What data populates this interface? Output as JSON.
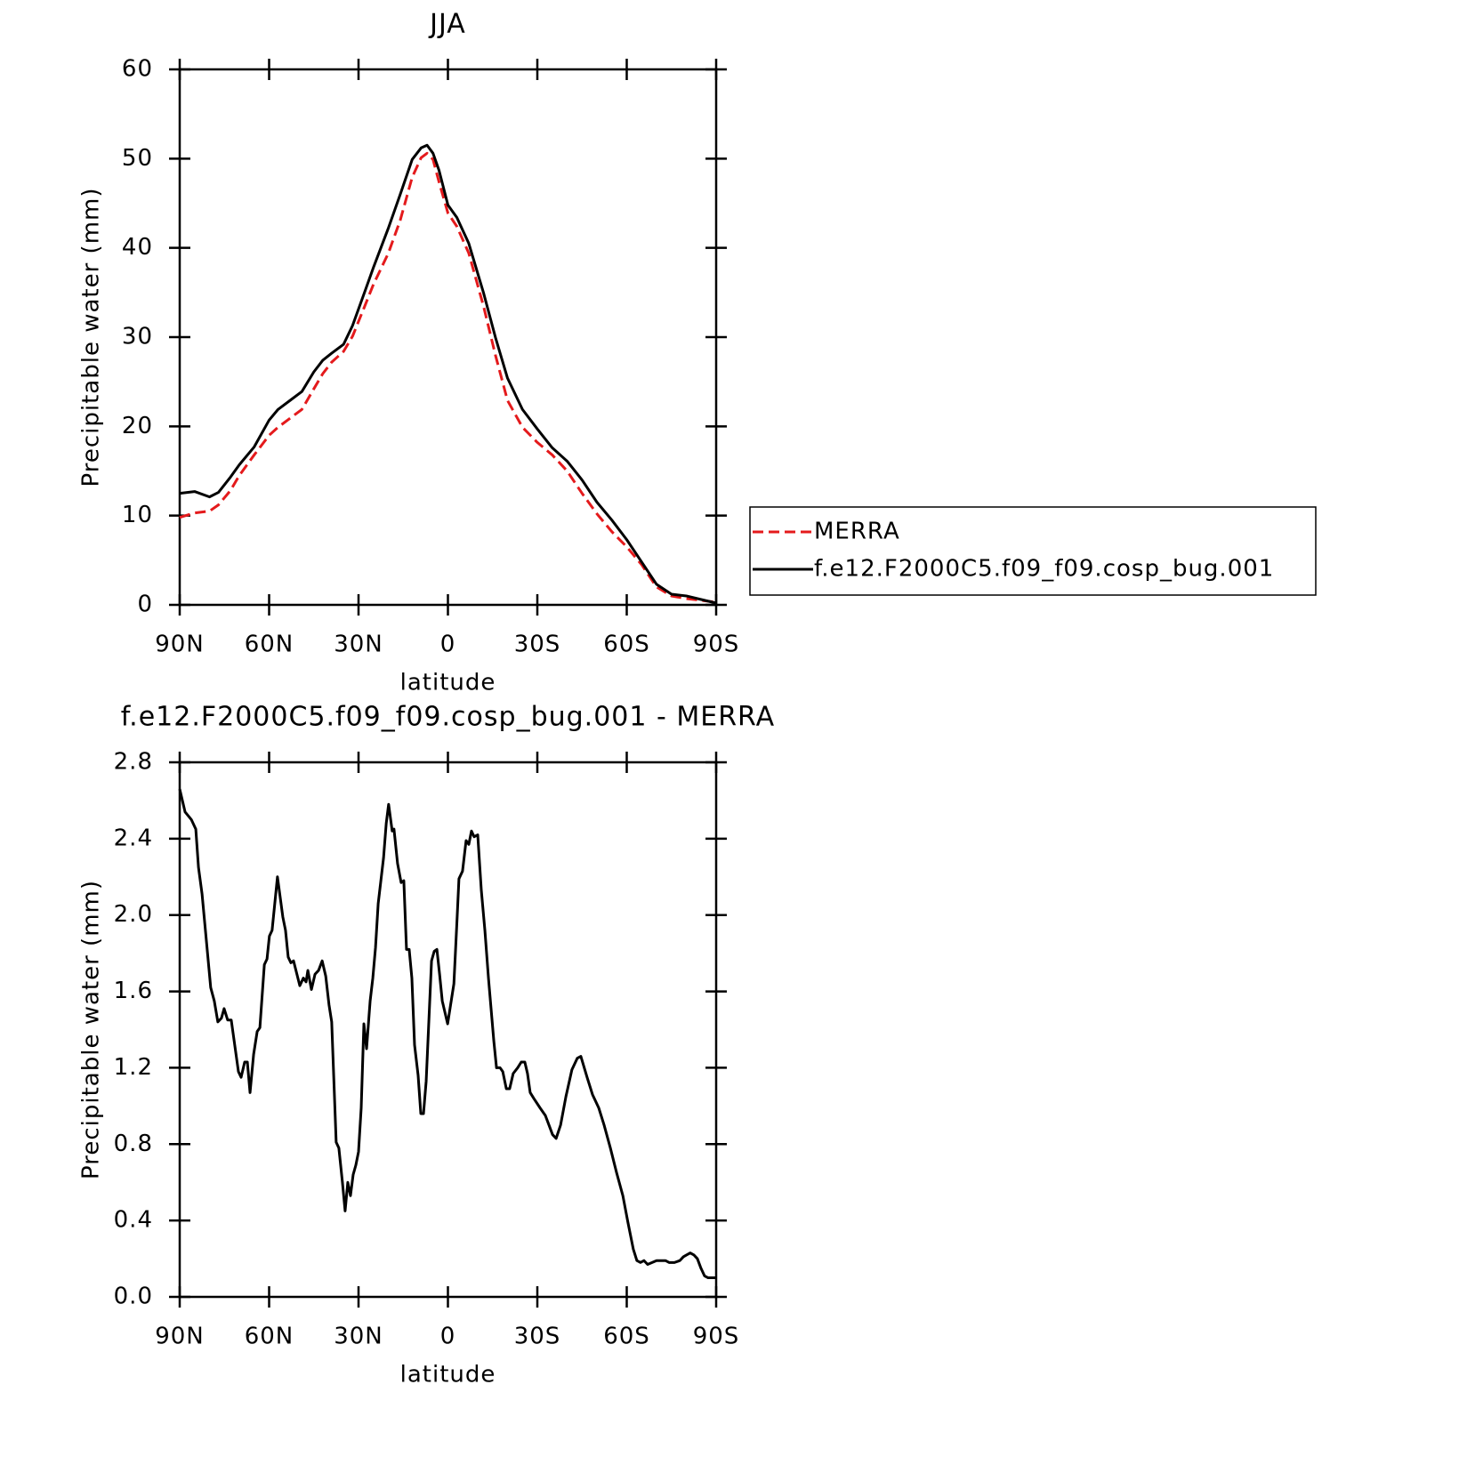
{
  "chart_data": [
    {
      "type": "line",
      "title": "JJA",
      "xlabel": "latitude",
      "ylabel": "Precipitable water (mm)",
      "x": [
        90,
        85,
        80,
        77,
        73,
        70,
        65,
        60,
        57,
        53,
        49,
        45,
        42,
        39,
        35,
        32,
        28,
        25,
        20,
        16,
        12,
        9,
        7,
        5,
        3,
        0,
        -3,
        -7,
        -12,
        -16,
        -20,
        -25,
        -30,
        -35,
        -40,
        -45,
        -50,
        -55,
        -60,
        -65,
        -70,
        -75,
        -80,
        -85,
        -90
      ],
      "series": [
        {
          "name": "MERRA",
          "color": "#e41a1c",
          "dashed": true,
          "values": [
            9.8,
            10.3,
            10.5,
            11.2,
            12.8,
            14.5,
            16.8,
            19.0,
            19.9,
            20.9,
            21.9,
            24.2,
            25.9,
            27.2,
            28.4,
            30.1,
            33.4,
            35.9,
            39.4,
            43.1,
            47.9,
            50.1,
            50.6,
            49.9,
            47.4,
            43.9,
            42.4,
            39.4,
            33.4,
            27.9,
            22.9,
            19.9,
            18.2,
            16.8,
            15.0,
            12.5,
            10.2,
            8.2,
            6.5,
            4.5,
            2.0,
            1.0,
            0.7,
            0.5,
            0.3
          ]
        },
        {
          "name": "f.e12.F2000C5.f09_f09.cosp_bug.001",
          "color": "#000000",
          "dashed": false,
          "values": [
            12.5,
            12.7,
            12.1,
            12.6,
            14.3,
            15.7,
            17.7,
            20.7,
            21.9,
            22.9,
            23.9,
            26.1,
            27.4,
            28.2,
            29.2,
            31.3,
            35.0,
            37.8,
            42.2,
            46.0,
            49.9,
            51.2,
            51.5,
            50.6,
            48.7,
            44.8,
            43.4,
            40.5,
            34.9,
            29.9,
            25.4,
            21.9,
            19.7,
            17.6,
            16.1,
            14.0,
            11.5,
            9.5,
            7.3,
            4.8,
            2.3,
            1.2,
            1.0,
            0.6,
            0.2
          ]
        }
      ],
      "xlim": [
        90,
        -90
      ],
      "xticks": [
        {
          "value": 90,
          "label": "90N"
        },
        {
          "value": 60,
          "label": "60N"
        },
        {
          "value": 30,
          "label": "30N"
        },
        0,
        {
          "value": -30,
          "label": "30S"
        },
        {
          "value": -60,
          "label": "60S"
        },
        {
          "value": -90,
          "label": "90S"
        }
      ],
      "ylim": [
        0,
        60
      ],
      "yticks": [
        0,
        10,
        20,
        30,
        40,
        50,
        60
      ],
      "legend": "right"
    },
    {
      "type": "line",
      "title": "f.e12.F2000C5.f09_f09.cosp_bug.001 - MERRA",
      "xlabel": "latitude",
      "ylabel": "Precipitable water (mm)",
      "x": [
        90,
        88.2,
        86.1,
        84.6,
        83.7,
        82.5,
        79.6,
        78.4,
        77.2,
        76.0,
        75.1,
        73.9,
        72.7,
        70.3,
        69.4,
        68.2,
        67.3,
        66.4,
        65.2,
        64.0,
        63.1,
        61.6,
        60.7,
        59.9,
        59.0,
        57.2,
        55.4,
        54.5,
        53.6,
        52.7,
        51.8,
        49.7,
        48.5,
        47.6,
        47.0,
        45.8,
        44.6,
        43.4,
        42.2,
        41.0,
        39.9,
        39.0,
        37.5,
        36.6,
        35.4,
        34.5,
        33.6,
        32.7,
        31.8,
        30.9,
        30.0,
        29.1,
        28.2,
        27.3,
        26.1,
        25.2,
        24.3,
        23.4,
        21.6,
        20.7,
        19.9,
        18.7,
        18.1,
        16.9,
        15.7,
        14.8,
        13.9,
        13.0,
        12.1,
        11.2,
        10.0,
        9.1,
        8.2,
        7.3,
        5.5,
        4.6,
        3.7,
        2.8,
        1.9,
        0.1,
        -2.0,
        -3.1,
        -3.7,
        -4.9,
        -6.1,
        -7.0,
        -7.9,
        -8.8,
        -10.0,
        -11.2,
        -12.4,
        -13.6,
        -15.4,
        -16.3,
        -17.5,
        -18.4,
        -19.6,
        -20.7,
        -21.9,
        -23.4,
        -24.6,
        -25.8,
        -26.7,
        -27.6,
        -28.8,
        -30.9,
        -32.7,
        -33.9,
        -35.1,
        -36.3,
        -37.8,
        -39.6,
        -41.6,
        -43.4,
        -44.6,
        -46.7,
        -48.5,
        -50.6,
        -52.4,
        -54.5,
        -56.6,
        -58.7,
        -60.4,
        -62.2,
        -63.4,
        -64.6,
        -65.8,
        -67.0,
        -68.5,
        -70.0,
        -71.8,
        -73.0,
        -74.2,
        -76.0,
        -77.8,
        -79.0,
        -80.1,
        -81.3,
        -82.5,
        -83.7,
        -84.9,
        -86.1,
        -87.3,
        -90
      ],
      "series": [
        {
          "color": "#000000",
          "dashed": false,
          "values": [
            2.66,
            2.54,
            2.5,
            2.45,
            2.25,
            2.11,
            1.62,
            1.55,
            1.44,
            1.46,
            1.51,
            1.45,
            1.45,
            1.18,
            1.15,
            1.23,
            1.23,
            1.07,
            1.27,
            1.39,
            1.41,
            1.74,
            1.77,
            1.89,
            1.92,
            2.2,
            1.99,
            1.92,
            1.78,
            1.75,
            1.76,
            1.63,
            1.67,
            1.65,
            1.71,
            1.61,
            1.69,
            1.71,
            1.76,
            1.68,
            1.53,
            1.44,
            0.81,
            0.78,
            0.6,
            0.45,
            0.6,
            0.53,
            0.64,
            0.69,
            0.76,
            0.99,
            1.43,
            1.3,
            1.55,
            1.67,
            1.83,
            2.06,
            2.3,
            2.48,
            2.58,
            2.44,
            2.45,
            2.27,
            2.17,
            2.18,
            1.82,
            1.82,
            1.67,
            1.32,
            1.16,
            0.96,
            0.96,
            1.13,
            1.76,
            1.81,
            1.82,
            1.69,
            1.55,
            1.43,
            1.64,
            1.99,
            2.19,
            2.23,
            2.39,
            2.37,
            2.44,
            2.41,
            2.42,
            2.13,
            1.92,
            1.67,
            1.34,
            1.2,
            1.2,
            1.18,
            1.09,
            1.09,
            1.17,
            1.2,
            1.23,
            1.23,
            1.17,
            1.07,
            1.04,
            0.99,
            0.95,
            0.9,
            0.85,
            0.83,
            0.9,
            1.05,
            1.19,
            1.25,
            1.26,
            1.15,
            1.06,
            0.99,
            0.9,
            0.78,
            0.65,
            0.53,
            0.39,
            0.25,
            0.19,
            0.18,
            0.19,
            0.17,
            0.18,
            0.19,
            0.19,
            0.19,
            0.18,
            0.18,
            0.19,
            0.21,
            0.22,
            0.23,
            0.22,
            0.2,
            0.15,
            0.11,
            0.1,
            0.1
          ]
        }
      ],
      "xlim": [
        90,
        -90
      ],
      "xticks": [
        {
          "value": 90,
          "label": "90N"
        },
        {
          "value": 60,
          "label": "60N"
        },
        {
          "value": 30,
          "label": "30N"
        },
        0,
        {
          "value": -30,
          "label": "30S"
        },
        {
          "value": -60,
          "label": "60S"
        },
        {
          "value": -90,
          "label": "90S"
        }
      ],
      "ylim": [
        0,
        2.8
      ],
      "yticks": [
        {
          "value": 0,
          "label": "0.0"
        },
        0.4,
        0.8,
        1.2,
        1.6,
        {
          "value": 2,
          "label": "2.0"
        },
        2.4,
        2.8
      ]
    }
  ]
}
